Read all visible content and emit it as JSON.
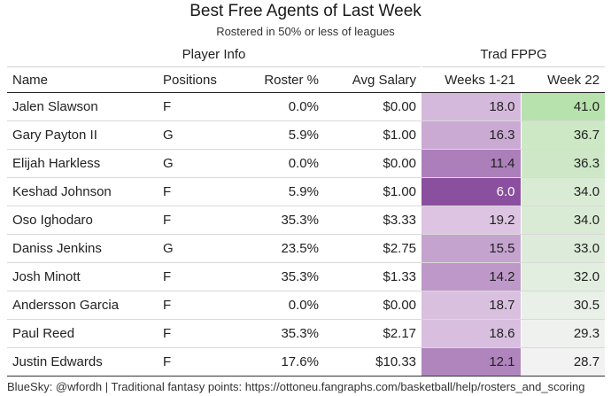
{
  "title": "Best Free Agents of Last Week",
  "subtitle": "Rostered in 50% or less of leagues",
  "groups": {
    "player_info": "Player Info",
    "trad_fppg": "Trad FPPG"
  },
  "columns": {
    "name": "Name",
    "positions": "Positions",
    "roster": "Roster %",
    "salary": "Avg Salary",
    "weeks": "Weeks 1-21",
    "week22": "Week 22"
  },
  "footer": "BlueSky: @wfordh | Traditional fantasy points: https://ottoneu.fangraphs.com/basketball/help/rosters_and_scoring",
  "colors": {
    "weeks_low": "#8a4f9e",
    "weeks_high": "#dcc4e2",
    "week22_low": "#f2f2f2",
    "week22_high": "#b7e2ad"
  },
  "chart_data": {
    "type": "table",
    "title": "Best Free Agents of Last Week",
    "subtitle": "Rostered in 50% or less of leagues",
    "rows": [
      {
        "name": "Jalen Slawson",
        "pos": "F",
        "roster": "0.0%",
        "salary": "$0.00",
        "weeks": "18.0",
        "week22": "41.0"
      },
      {
        "name": "Gary Payton II",
        "pos": "G",
        "roster": "5.9%",
        "salary": "$1.00",
        "weeks": "16.3",
        "week22": "36.7"
      },
      {
        "name": "Elijah Harkless",
        "pos": "G",
        "roster": "0.0%",
        "salary": "$0.00",
        "weeks": "11.4",
        "week22": "36.3"
      },
      {
        "name": "Keshad Johnson",
        "pos": "F",
        "roster": "5.9%",
        "salary": "$1.00",
        "weeks": "6.0",
        "week22": "34.0"
      },
      {
        "name": "Oso Ighodaro",
        "pos": "F",
        "roster": "35.3%",
        "salary": "$3.33",
        "weeks": "19.2",
        "week22": "34.0"
      },
      {
        "name": "Daniss Jenkins",
        "pos": "G",
        "roster": "23.5%",
        "salary": "$2.75",
        "weeks": "15.5",
        "week22": "33.0"
      },
      {
        "name": "Josh Minott",
        "pos": "F",
        "roster": "35.3%",
        "salary": "$1.33",
        "weeks": "14.2",
        "week22": "32.0"
      },
      {
        "name": "Andersson Garcia",
        "pos": "F",
        "roster": "0.0%",
        "salary": "$0.00",
        "weeks": "18.7",
        "week22": "30.5"
      },
      {
        "name": "Paul Reed",
        "pos": "F",
        "roster": "35.3%",
        "salary": "$2.17",
        "weeks": "18.6",
        "week22": "29.3"
      },
      {
        "name": "Justin Edwards",
        "pos": "F",
        "roster": "17.6%",
        "salary": "$10.33",
        "weeks": "12.1",
        "week22": "28.7"
      }
    ]
  }
}
